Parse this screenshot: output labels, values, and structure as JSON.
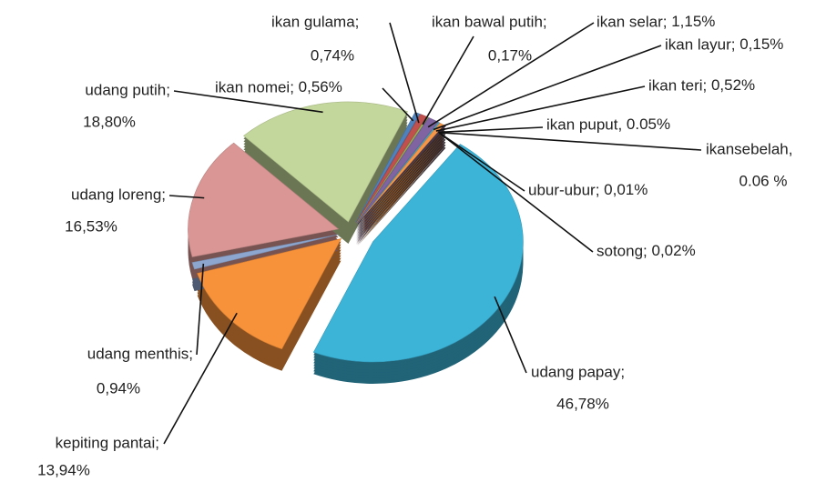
{
  "chart_data": {
    "type": "pie",
    "categories": [
      "udang papay;",
      "kepiting pantai;",
      "udang menthis;",
      "udang loreng;",
      "udang putih;",
      "ikan nomei;",
      "ikan gulama;",
      "ikan bawal putih;",
      "ikan selar;",
      "ikan layur;",
      "ikan teri;",
      "ikan puput,",
      "ikansebelah,",
      "ubur-ubur;",
      "sotong;"
    ],
    "values": [
      46.78,
      13.94,
      0.94,
      16.53,
      18.8,
      0.56,
      0.74,
      0.17,
      1.15,
      0.15,
      0.52,
      0.05,
      0.06,
      0.01,
      0.02
    ],
    "value_labels": [
      "46,78%",
      "13,94%",
      "0,94%",
      "16,53%",
      "18,80%",
      "0,56%",
      "0,74%",
      "0,17%",
      "1,15%",
      "0,15%",
      "0,52%",
      "0.05%",
      "0.06 %",
      "0,01%",
      "0,02%"
    ],
    "colors": [
      "#3cb4d8",
      "#f7923a",
      "#8da6cf",
      "#d99694",
      "#c3d69b",
      "#4f81bd",
      "#c0504d",
      "#9bbb59",
      "#8064a2",
      "#4bacc6",
      "#f79646",
      "#2c4d75",
      "#772c2a",
      "#5f7530",
      "#4d3b62"
    ]
  }
}
